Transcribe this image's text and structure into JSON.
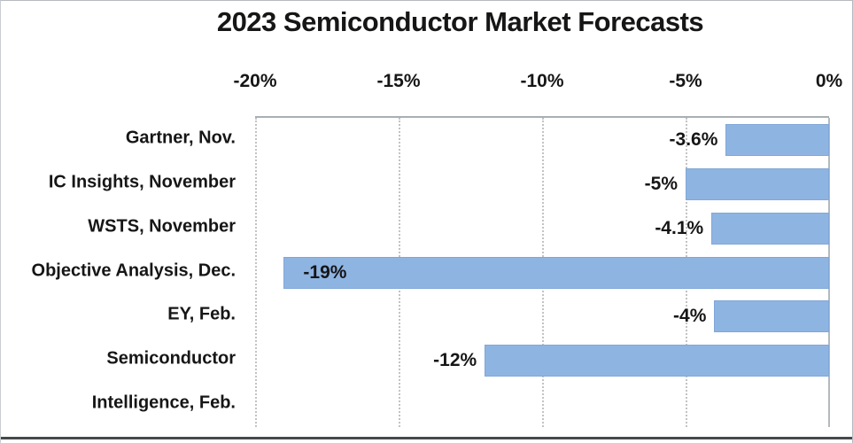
{
  "chart_data": {
    "type": "bar",
    "orientation": "horizontal",
    "title": "2023 Semiconductor Market Forecasts",
    "categories": [
      "Gartner, Nov.",
      "IC Insights, November",
      "WSTS, November",
      "Objective Analysis, Dec.",
      "EY, Feb.",
      "Semiconductor Intelligence, Feb."
    ],
    "category_display_lines": [
      "Gartner, Nov.",
      "IC Insights, November",
      "WSTS, November",
      "Objective Analysis, Dec.",
      "EY, Feb.",
      "Semiconductor",
      "Intelligence, Feb."
    ],
    "values": [
      -3.6,
      -5,
      -4.1,
      -19,
      -4,
      -12
    ],
    "data_labels": [
      "-3.6%",
      "-5%",
      "-4.1%",
      "-19%",
      "-4%",
      "-12%"
    ],
    "x_ticks": [
      "-20%",
      "-15%",
      "-10%",
      "-5%",
      "0%"
    ],
    "x_tick_values": [
      -20,
      -15,
      -10,
      -5,
      0
    ],
    "xlim": [
      -20,
      0
    ],
    "xlabel": "",
    "ylabel": "",
    "legend": "none",
    "grid": "vertical-dotted",
    "axis_labels_position": "top",
    "bar_color": "#8EB4E2",
    "bar_border_color": "#81A7D8",
    "gridline_color": "#C3C3C3",
    "axis_line_color": "#B4B9BE",
    "text_color": "#161616"
  }
}
